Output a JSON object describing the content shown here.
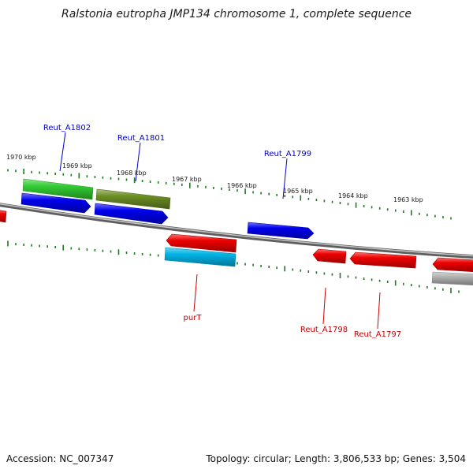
{
  "title": "Ralstonia eutropha JMP134 chromosome 1, complete sequence",
  "footer": {
    "accession": "Accession: NC_007347",
    "summary": "Topology: circular; Length: 3,806,533 bp; Genes: 3,504"
  },
  "kbp_labels": [
    "1970 kbp",
    "1969 kbp",
    "1968 kbp",
    "1967 kbp",
    "1966 kbp",
    "1965 kbp",
    "1964 kbp",
    "1963 kbp"
  ],
  "gene_labels": [
    "Reut_A1802",
    "Reut_A1801",
    "Reut_A1799",
    "purT",
    "Reut_A1798",
    "Reut_A1797"
  ],
  "colors": {
    "backbone": "#7a7a7a",
    "tick": "#1f7a1f",
    "forward_label": "#0000cc",
    "reverse_label": "#cc0000",
    "green": "#33cc33",
    "olive": "#6b8e23",
    "blue": "#0000ee",
    "red": "#ee0000",
    "cyan": "#00b4e6",
    "gray": "#b3b3b3"
  },
  "genes": [
    {
      "id": "forward-green",
      "color": "green"
    },
    {
      "id": "forward-olive",
      "color": "olive"
    },
    {
      "id": "forward-blue-1",
      "color": "blue"
    },
    {
      "id": "forward-blue-2",
      "color": "blue"
    },
    {
      "id": "forward-blue-3",
      "color": "blue"
    },
    {
      "id": "reverse-red-edge",
      "color": "red"
    },
    {
      "id": "reverse-red-1",
      "color": "red"
    },
    {
      "id": "reverse-cyan",
      "color": "cyan"
    },
    {
      "id": "reverse-red-2",
      "color": "red"
    },
    {
      "id": "reverse-red-3",
      "color": "red"
    },
    {
      "id": "reverse-red-4",
      "color": "red"
    },
    {
      "id": "reverse-gray",
      "color": "gray"
    }
  ]
}
